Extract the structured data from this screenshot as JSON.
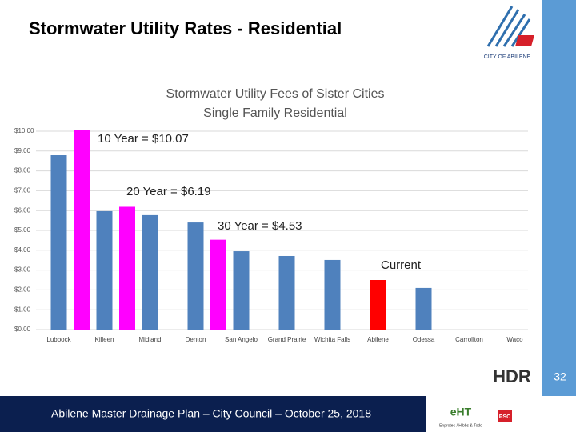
{
  "slide": {
    "title": "Stormwater Utility Rates - Residential",
    "footer": "Abilene Master Drainage Plan – City Council – October 25, 2018",
    "page_number": "32",
    "logo": "CITY OF ABILENE",
    "partners": [
      "HDR",
      "eHT",
      "Enprotec / Hibbs & Todd",
      "PSC"
    ]
  },
  "chart_data": {
    "type": "bar",
    "title": "Stormwater Utility Fees of Sister Cities",
    "subtitle": "Single Family Residential",
    "categories": [
      "Lubbock",
      "Killeen",
      "Midland",
      "Denton",
      "San Angelo",
      "Grand Prairie",
      "Wichita Falls",
      "Abilene",
      "Odessa",
      "Carrollton",
      "Waco"
    ],
    "series": [
      {
        "color": "#4f81bd",
        "values": [
          8.79,
          5.97,
          5.77,
          5.4,
          3.95,
          3.71,
          3.51,
          null,
          2.1,
          null,
          null
        ]
      },
      {
        "color": "#ff0000",
        "values": [
          null,
          null,
          null,
          null,
          null,
          null,
          null,
          2.5,
          null,
          null,
          null
        ]
      },
      {
        "color": "#ff00ff",
        "values": [
          10.07,
          6.19,
          null,
          4.53,
          null,
          null,
          null,
          null,
          null,
          null,
          null
        ]
      }
    ],
    "annotations": [
      "10 Year = $10.07",
      "20 Year = $6.19",
      "30 Year = $4.53",
      "Current"
    ],
    "ylim": [
      0,
      10
    ],
    "yticks": [
      {
        "value": 0,
        "label": "$0.00"
      },
      {
        "value": 1,
        "label": "$1.00"
      },
      {
        "value": 2,
        "label": "$2.00"
      },
      {
        "value": 3,
        "label": "$3.00"
      },
      {
        "value": 4,
        "label": "$4.00"
      },
      {
        "value": 5,
        "label": "$5.00"
      },
      {
        "value": 6,
        "label": "$6.00"
      },
      {
        "value": 7,
        "label": "$7.00"
      },
      {
        "value": 8,
        "label": "$8.00"
      },
      {
        "value": 9,
        "label": "$9.00"
      },
      {
        "value": 10,
        "label": "$10.00"
      }
    ],
    "grid": true
  }
}
